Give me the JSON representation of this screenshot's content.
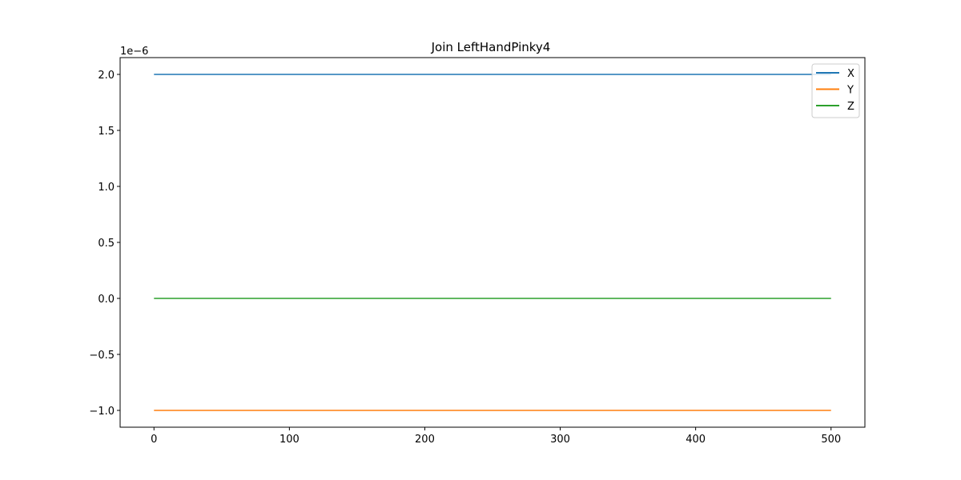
{
  "chart_data": {
    "type": "line",
    "title": "Join LeftHandPinky4",
    "xlabel": "",
    "ylabel": "",
    "y_offset_label": "1e−6",
    "xlim": [
      -25,
      525
    ],
    "ylim": [
      -1.15e-06,
      2.15e-06
    ],
    "x_ticks": [
      0,
      100,
      200,
      300,
      400,
      500
    ],
    "x_tick_labels": [
      "0",
      "100",
      "200",
      "300",
      "400",
      "500"
    ],
    "y_ticks": [
      -1e-06,
      -5e-07,
      0.0,
      5e-07,
      1e-06,
      1.5e-06,
      2e-06
    ],
    "y_tick_labels": [
      "−1.0",
      "−0.5",
      "0.0",
      "0.5",
      "1.0",
      "1.5",
      "2.0"
    ],
    "grid": false,
    "legend_position": "upper right",
    "series": [
      {
        "name": "X",
        "color": "#1f77b4",
        "x": [
          0,
          500
        ],
        "y": [
          2e-06,
          2e-06
        ]
      },
      {
        "name": "Y",
        "color": "#ff7f0e",
        "x": [
          0,
          500
        ],
        "y": [
          -1e-06,
          -1e-06
        ]
      },
      {
        "name": "Z",
        "color": "#2ca02c",
        "x": [
          0,
          500
        ],
        "y": [
          0.0,
          0.0
        ]
      }
    ]
  }
}
